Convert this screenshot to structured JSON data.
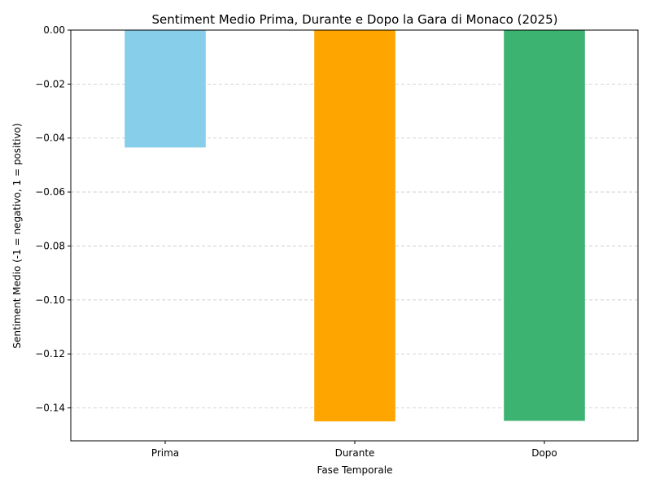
{
  "chart_data": {
    "type": "bar",
    "title": "Sentiment Medio Prima, Durante e Dopo la Gara di Monaco (2025)",
    "xlabel": "Fase Temporale",
    "ylabel": "Sentiment Medio (-1 = negativo, 1 = positivo)",
    "categories": [
      "Prima",
      "Durante",
      "Dopo"
    ],
    "values": [
      -0.0435,
      -0.145,
      -0.1448
    ],
    "colors": [
      "#87ceeb",
      "#ffa500",
      "#3cb371"
    ],
    "ylim": [
      -0.1522,
      0.0
    ],
    "yticks": [
      0.0,
      -0.02,
      -0.04,
      -0.06,
      -0.08,
      -0.1,
      -0.12,
      -0.14
    ],
    "ytick_labels": [
      "0.00",
      "−0.02",
      "−0.04",
      "−0.06",
      "−0.08",
      "−0.10",
      "−0.12",
      "−0.14"
    ],
    "grid": "y-dashed",
    "legend": "none"
  }
}
